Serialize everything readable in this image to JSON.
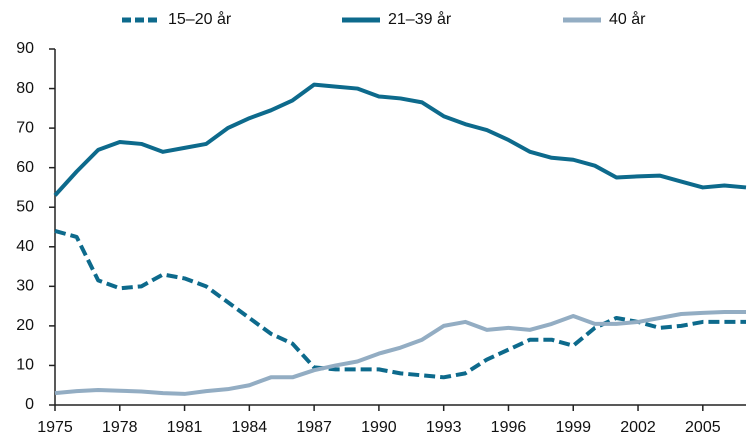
{
  "chart_data": {
    "type": "line",
    "x": [
      1975,
      1976,
      1977,
      1978,
      1979,
      1980,
      1981,
      1982,
      1983,
      1984,
      1985,
      1986,
      1987,
      1988,
      1989,
      1990,
      1991,
      1992,
      1993,
      1994,
      1995,
      1996,
      1997,
      1998,
      1999,
      2000,
      2001,
      2002,
      2003,
      2004,
      2005,
      2006,
      2007
    ],
    "series": [
      {
        "name": "15–20 år",
        "color": "#0d6a8c",
        "dashed": true,
        "values": [
          44,
          42.5,
          31.5,
          29.5,
          30,
          33,
          32,
          30,
          26,
          22,
          18,
          15.5,
          9.5,
          9,
          9,
          9,
          8,
          7.5,
          7,
          8,
          11.5,
          14,
          16.5,
          16.5,
          15,
          19.5,
          22,
          21,
          19.5,
          20,
          21,
          21,
          21
        ]
      },
      {
        "name": "21–39 år",
        "color": "#0d6a8c",
        "dashed": false,
        "values": [
          53,
          59,
          64.5,
          66.5,
          66,
          64,
          65,
          66,
          70,
          72.5,
          74.5,
          77,
          81,
          80.5,
          80,
          78,
          77.5,
          76.5,
          73,
          71,
          69.5,
          67,
          64,
          62.5,
          62,
          60.5,
          57.5,
          57.8,
          58,
          56.5,
          55,
          55.5,
          55
        ]
      },
      {
        "name": "40 år",
        "color": "#93adc3",
        "dashed": false,
        "values": [
          3,
          3.5,
          3.8,
          3.6,
          3.4,
          3,
          2.8,
          3.5,
          4,
          5,
          7,
          7,
          8.8,
          10,
          11,
          13,
          14.5,
          16.5,
          20,
          21,
          19,
          19.5,
          19,
          20.5,
          22.5,
          20.5,
          20.5,
          21,
          22,
          23,
          23.3,
          23.5,
          23.5
        ]
      }
    ],
    "xlim": [
      1975,
      2007
    ],
    "xticks": [
      1975,
      1978,
      1981,
      1984,
      1987,
      1990,
      1993,
      1996,
      1999,
      2002,
      2005
    ],
    "ylim": [
      0,
      90
    ],
    "yticks": [
      0,
      10,
      20,
      30,
      40,
      50,
      60,
      70,
      80,
      90
    ],
    "grid": false,
    "legend": "top"
  }
}
